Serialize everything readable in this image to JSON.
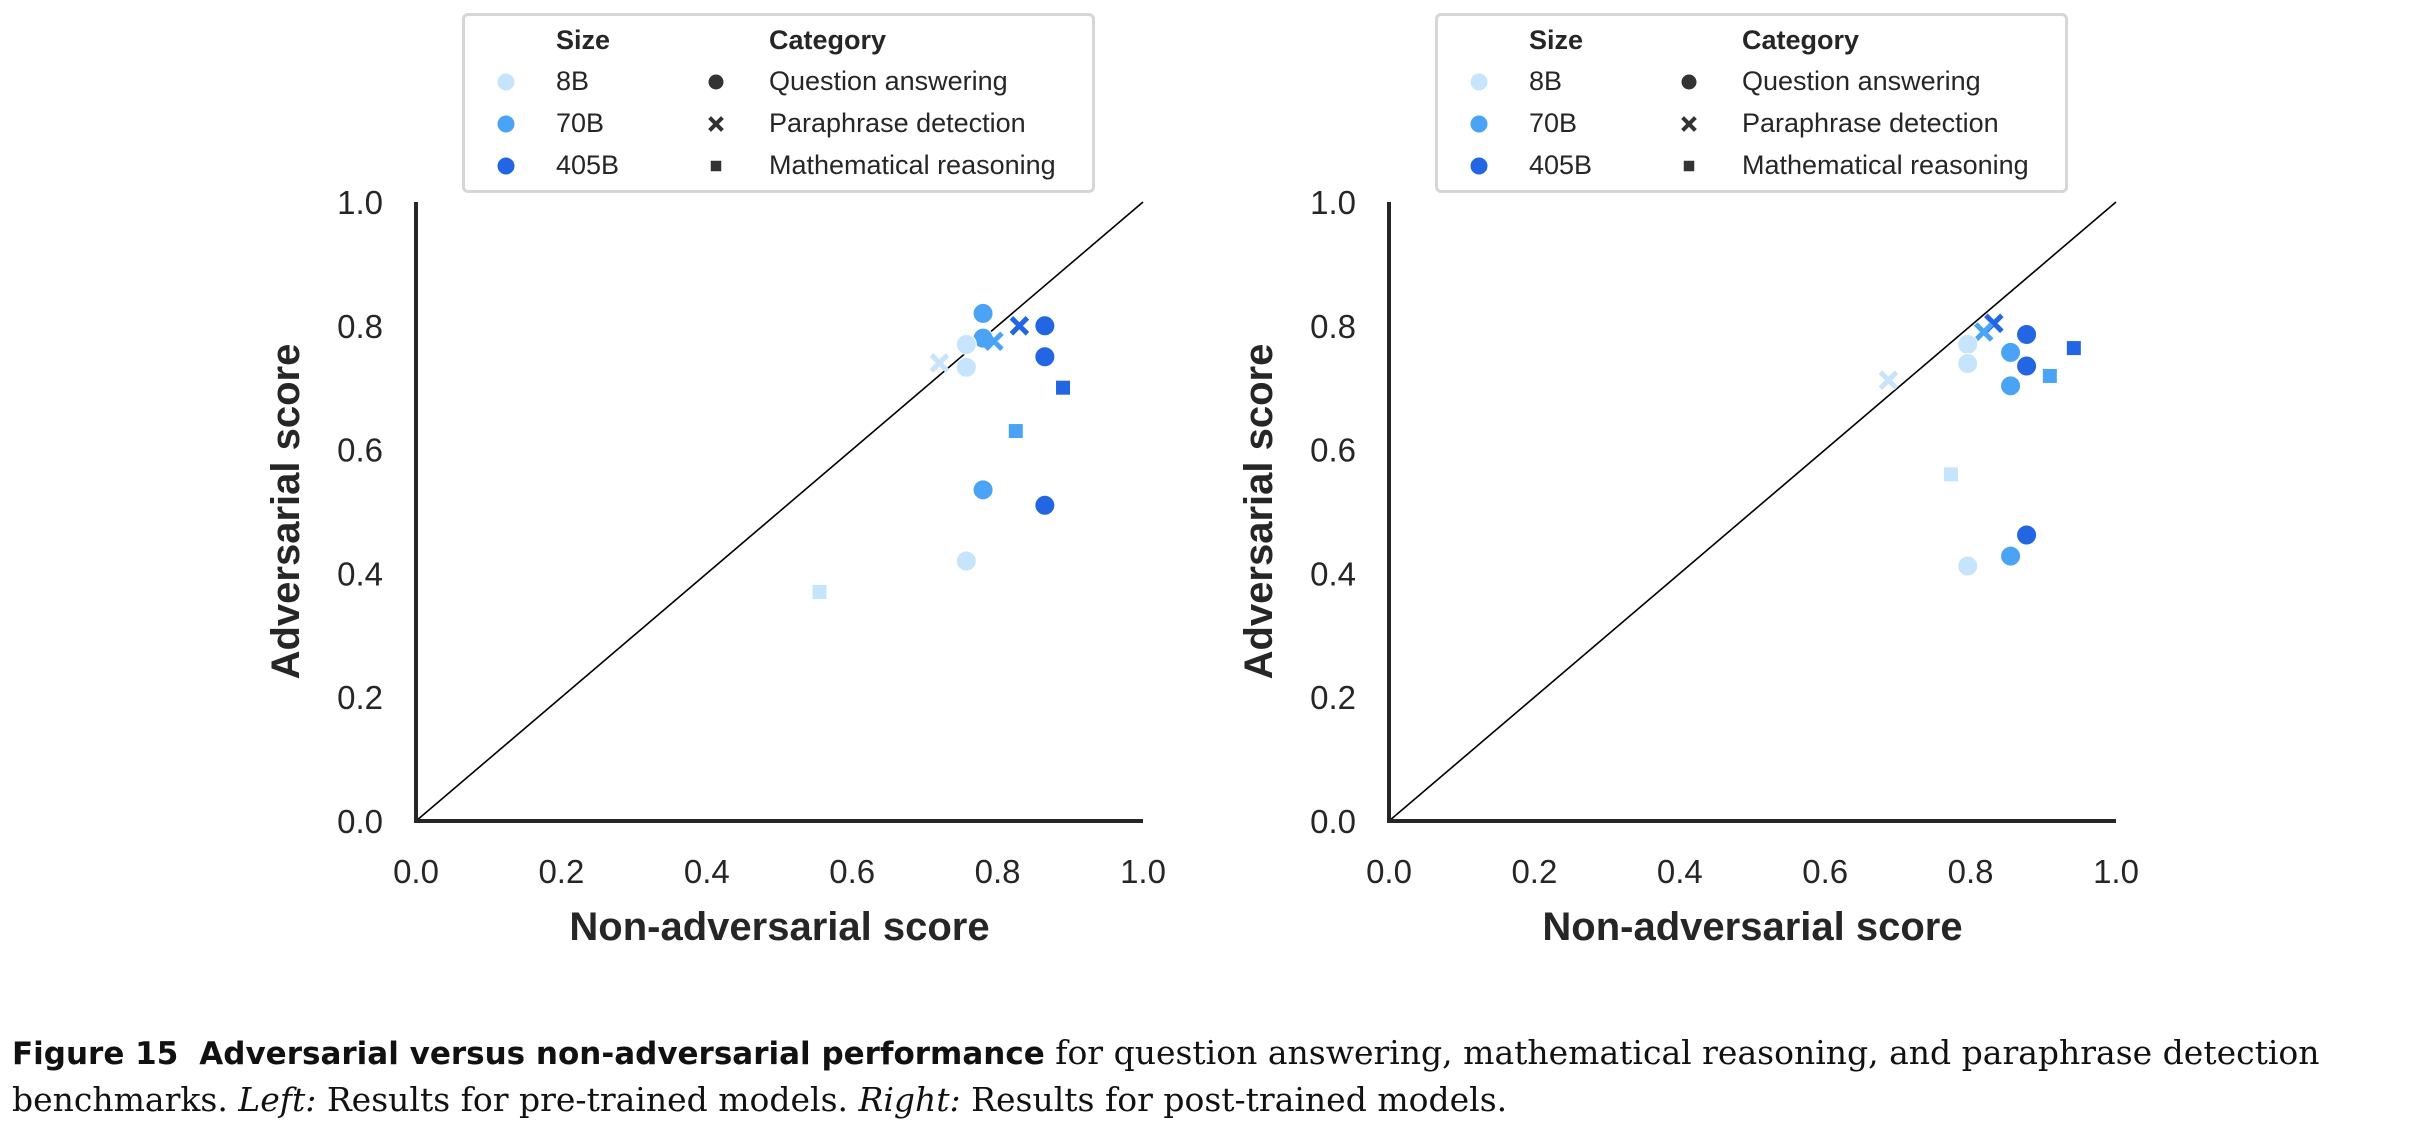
{
  "legend": {
    "size_title": "Size",
    "category_title": "Category",
    "sizes": [
      {
        "label": "8B",
        "color": "#c6e4fb"
      },
      {
        "label": "70B",
        "color": "#4ba3f5"
      },
      {
        "label": "405B",
        "color": "#2266e3"
      }
    ],
    "categories": [
      {
        "label": "Question answering",
        "marker": "circle"
      },
      {
        "label": "Paraphrase detection",
        "marker": "x"
      },
      {
        "label": "Mathematical reasoning",
        "marker": "square"
      }
    ]
  },
  "chart_data": [
    {
      "type": "scatter",
      "title": "Left: pre-trained models",
      "xlabel": "Non-adversarial score",
      "ylabel": "Adversarial score",
      "xlim": [
        0,
        1
      ],
      "ylim": [
        0,
        1
      ],
      "xticks": [
        "0.0",
        "0.2",
        "0.4",
        "0.6",
        "0.8",
        "1.0"
      ],
      "yticks": [
        "0.0",
        "0.2",
        "0.4",
        "0.6",
        "0.8",
        "1.0"
      ],
      "reference_line": "y = x",
      "points": [
        {
          "size": "70B",
          "category": "circle",
          "x": 0.78,
          "y": 0.82
        },
        {
          "size": "405B",
          "category": "x",
          "x": 0.83,
          "y": 0.8
        },
        {
          "size": "405B",
          "category": "circle",
          "x": 0.865,
          "y": 0.8
        },
        {
          "size": "70B",
          "category": "circle",
          "x": 0.78,
          "y": 0.78
        },
        {
          "size": "70B",
          "category": "x",
          "x": 0.795,
          "y": 0.775
        },
        {
          "size": "8B",
          "category": "circle",
          "x": 0.757,
          "y": 0.77
        },
        {
          "size": "8B",
          "category": "x",
          "x": 0.72,
          "y": 0.74
        },
        {
          "size": "8B",
          "category": "circle",
          "x": 0.757,
          "y": 0.733
        },
        {
          "size": "405B",
          "category": "circle",
          "x": 0.865,
          "y": 0.75
        },
        {
          "size": "405B",
          "category": "square",
          "x": 0.89,
          "y": 0.7
        },
        {
          "size": "70B",
          "category": "square",
          "x": 0.825,
          "y": 0.63
        },
        {
          "size": "70B",
          "category": "circle",
          "x": 0.78,
          "y": 0.535
        },
        {
          "size": "405B",
          "category": "circle",
          "x": 0.865,
          "y": 0.51
        },
        {
          "size": "8B",
          "category": "circle",
          "x": 0.757,
          "y": 0.42
        },
        {
          "size": "8B",
          "category": "square",
          "x": 0.555,
          "y": 0.37
        }
      ]
    },
    {
      "type": "scatter",
      "title": "Right: post-trained models",
      "xlabel": "Non-adversarial score",
      "ylabel": "Adversarial score",
      "xlim": [
        0,
        1
      ],
      "ylim": [
        0,
        1
      ],
      "xticks": [
        "0.0",
        "0.2",
        "0.4",
        "0.6",
        "0.8",
        "1.0"
      ],
      "yticks": [
        "0.0",
        "0.2",
        "0.4",
        "0.6",
        "0.8",
        "1.0"
      ],
      "reference_line": "y = x",
      "points": [
        {
          "size": "405B",
          "category": "x",
          "x": 0.832,
          "y": 0.804
        },
        {
          "size": "70B",
          "category": "x",
          "x": 0.818,
          "y": 0.79
        },
        {
          "size": "405B",
          "category": "circle",
          "x": 0.877,
          "y": 0.786
        },
        {
          "size": "8B",
          "category": "circle",
          "x": 0.796,
          "y": 0.77
        },
        {
          "size": "405B",
          "category": "square",
          "x": 0.942,
          "y": 0.764
        },
        {
          "size": "70B",
          "category": "circle",
          "x": 0.855,
          "y": 0.757
        },
        {
          "size": "8B",
          "category": "circle",
          "x": 0.796,
          "y": 0.739
        },
        {
          "size": "405B",
          "category": "circle",
          "x": 0.877,
          "y": 0.735
        },
        {
          "size": "70B",
          "category": "square",
          "x": 0.909,
          "y": 0.719
        },
        {
          "size": "70B",
          "category": "circle",
          "x": 0.855,
          "y": 0.703
        },
        {
          "size": "8B",
          "category": "x",
          "x": 0.687,
          "y": 0.712
        },
        {
          "size": "8B",
          "category": "square",
          "x": 0.773,
          "y": 0.56
        },
        {
          "size": "405B",
          "category": "circle",
          "x": 0.877,
          "y": 0.462
        },
        {
          "size": "70B",
          "category": "circle",
          "x": 0.855,
          "y": 0.428
        },
        {
          "size": "8B",
          "category": "circle",
          "x": 0.796,
          "y": 0.412
        }
      ]
    }
  ],
  "caption": {
    "figure_label": "Figure 15",
    "title": "Adversarial versus non-adversarial performance",
    "text1": " for question answering, mathematical reasoning, and paraphrase detection benchmarks. ",
    "left_label": "Left:",
    "left_text": " Results for pre-trained models. ",
    "right_label": "Right:",
    "right_text": " Results for post-trained models."
  }
}
